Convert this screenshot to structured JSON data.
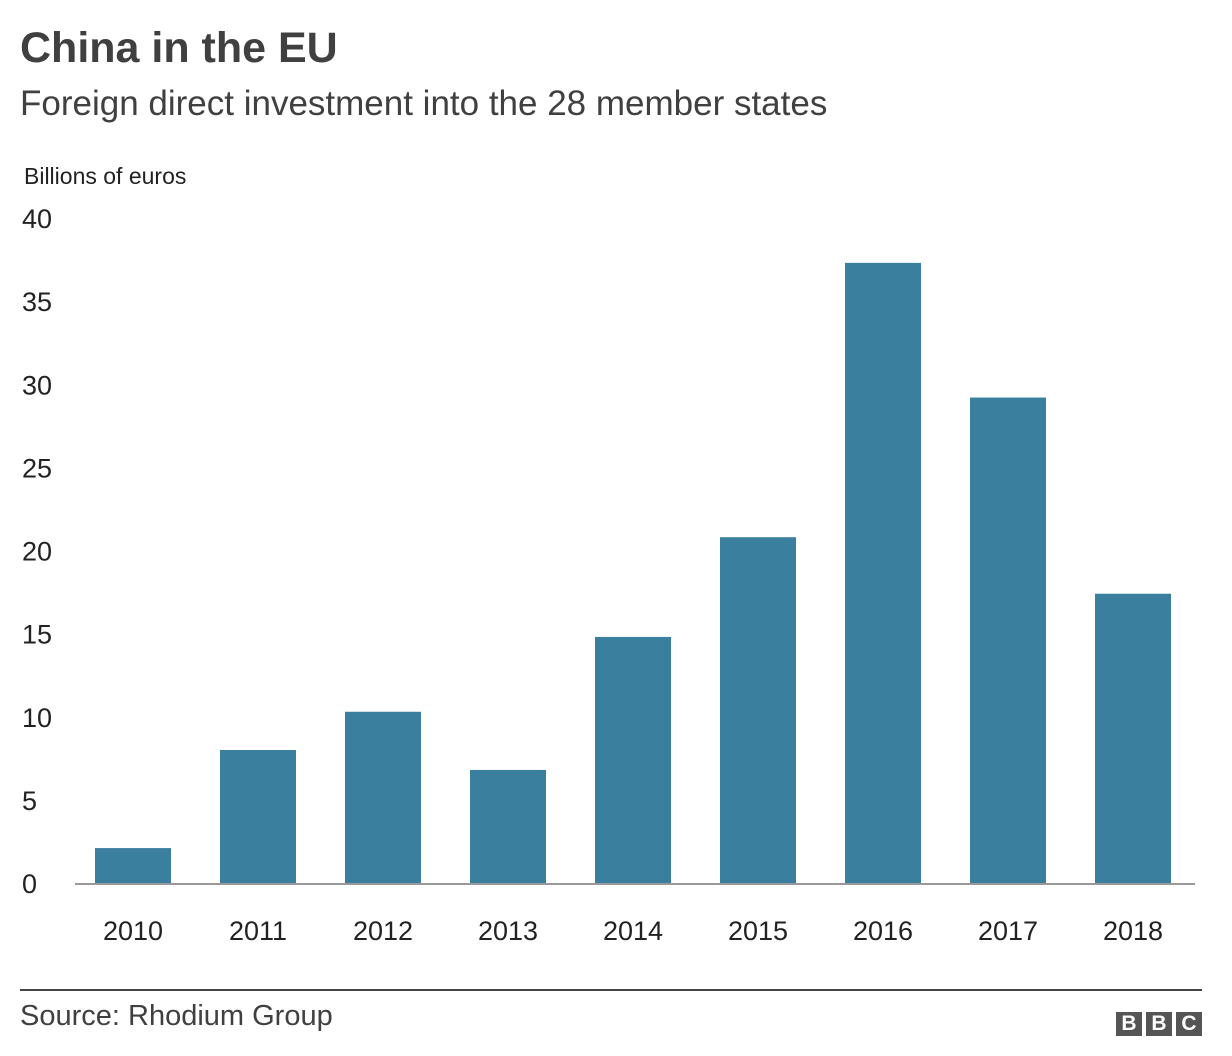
{
  "chart_data": {
    "type": "bar",
    "title": "China in the EU",
    "subtitle": "Foreign direct investment into the 28 member states",
    "ylabel": "Billions of euros",
    "xlabel": "",
    "categories": [
      "2010",
      "2011",
      "2012",
      "2013",
      "2014",
      "2015",
      "2016",
      "2017",
      "2018"
    ],
    "values": [
      2.1,
      8.0,
      10.3,
      6.8,
      14.8,
      20.8,
      37.3,
      29.2,
      17.4
    ],
    "ylim": [
      0,
      40
    ],
    "yticks": [
      0,
      5,
      10,
      15,
      20,
      25,
      30,
      35,
      40
    ],
    "grid": false,
    "bar_color": "#3b7f9f"
  },
  "footer": {
    "source": "Source: Rhodium Group",
    "logo_letters": [
      "B",
      "B",
      "C"
    ]
  }
}
